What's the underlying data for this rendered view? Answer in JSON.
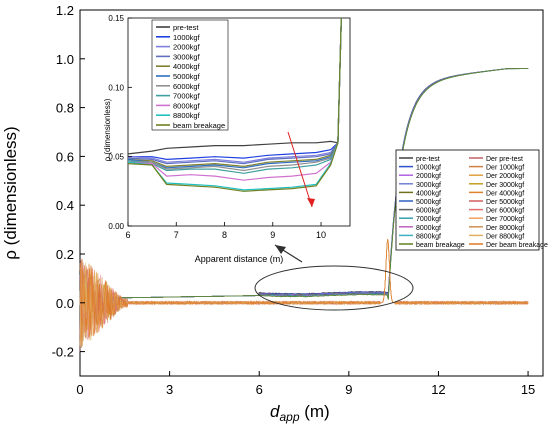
{
  "chart_data": [
    {
      "type": "line",
      "role": "main",
      "xlabel": "d",
      "xlabel_sub": "app",
      "xlabel_unit": " (m)",
      "ylabel": "ρ (dimensionless)",
      "xlim": [
        0,
        15.5
      ],
      "ylim": [
        -0.3,
        1.2
      ],
      "xticks": [
        "0",
        "3",
        "6",
        "9",
        "12",
        "15"
      ],
      "xtick_values": [
        0,
        3,
        6,
        9,
        12,
        15
      ],
      "yticks": [
        "-0.2",
        "0.0",
        "0.2",
        "0.4",
        "0.6",
        "0.8",
        "1.0",
        "1.2"
      ],
      "ytick_values": [
        -0.2,
        0.0,
        0.2,
        0.4,
        0.6,
        0.8,
        1.0,
        1.2
      ],
      "legend_position": "right-middle",
      "legend": [
        {
          "label": "pre-test",
          "color": "#404040"
        },
        {
          "label": "Der pre-test",
          "color": "#c06060"
        },
        {
          "label": "1000kgf",
          "color": "#3050d0"
        },
        {
          "label": "Der 1000kgf",
          "color": "#d08040"
        },
        {
          "label": "2000kgf",
          "color": "#b060e0"
        },
        {
          "label": "Der 2000kgf",
          "color": "#e0a040"
        },
        {
          "label": "3000kgf",
          "color": "#7080d0"
        },
        {
          "label": "Der 3000kgf",
          "color": "#c0a020"
        },
        {
          "label": "4000kgf",
          "color": "#707020"
        },
        {
          "label": "Der 4000kgf",
          "color": "#e08030"
        },
        {
          "label": "5000kgf",
          "color": "#3060c0"
        },
        {
          "label": "Der 5000kgf",
          "color": "#d06060"
        },
        {
          "label": "6000kgf",
          "color": "#606060"
        },
        {
          "label": "Der 6000kgf",
          "color": "#e07070"
        },
        {
          "label": "7000kgf",
          "color": "#30a0b0"
        },
        {
          "label": "Der 7000kgf",
          "color": "#f0a060"
        },
        {
          "label": "8000kgf",
          "color": "#c060c0"
        },
        {
          "label": "Der 8000kgf",
          "color": "#d09050"
        },
        {
          "label": "8800kgf",
          "color": "#40b0c0"
        },
        {
          "label": "Der 8800kgf",
          "color": "#e0b060"
        },
        {
          "label": "beam breakage",
          "color": "#608020"
        },
        {
          "label": "Der beam breakage",
          "color": "#e07820"
        }
      ],
      "series_summary": {
        "baseline_before_rise": 0.04,
        "rise_location_m": 10.3,
        "plateau_end_value": 0.96,
        "derivative_spike_peak": 0.26
      }
    },
    {
      "type": "line",
      "role": "inset",
      "xlabel": "Apparent distance (m)",
      "ylabel": "ρ (dimensionless)",
      "xlim": [
        6,
        10.6
      ],
      "ylim": [
        0,
        0.15
      ],
      "xticks": [
        "6",
        "7",
        "8",
        "9",
        "10"
      ],
      "xtick_values": [
        6,
        7,
        8,
        9,
        10
      ],
      "yticks": [
        "0.00",
        "0.05",
        "0.10",
        "0.15"
      ],
      "ytick_values": [
        0.0,
        0.05,
        0.1,
        0.15
      ],
      "legend_position": "top-left",
      "series": [
        {
          "name": "pre-test",
          "color": "#404040",
          "values": [
            0.052,
            0.054,
            0.056,
            0.057,
            0.058,
            0.058,
            0.059,
            0.06,
            0.06,
            0.061
          ]
        },
        {
          "name": "1000kgf",
          "color": "#2040e0",
          "values": [
            0.05,
            0.05,
            0.048,
            0.049,
            0.05,
            0.049,
            0.051,
            0.052,
            0.053,
            0.055
          ]
        },
        {
          "name": "2000kgf",
          "color": "#8080e0",
          "values": [
            0.05,
            0.049,
            0.046,
            0.047,
            0.048,
            0.046,
            0.049,
            0.05,
            0.051,
            0.053
          ]
        },
        {
          "name": "3000kgf",
          "color": "#6070c0",
          "values": [
            0.049,
            0.048,
            0.045,
            0.046,
            0.047,
            0.045,
            0.048,
            0.049,
            0.05,
            0.052
          ]
        },
        {
          "name": "4000kgf",
          "color": "#808030",
          "values": [
            0.048,
            0.047,
            0.043,
            0.044,
            0.045,
            0.043,
            0.046,
            0.047,
            0.048,
            0.051
          ]
        },
        {
          "name": "5000kgf",
          "color": "#3070c0",
          "values": [
            0.048,
            0.046,
            0.042,
            0.043,
            0.044,
            0.042,
            0.045,
            0.046,
            0.047,
            0.05
          ]
        },
        {
          "name": "6000kgf",
          "color": "#909090",
          "values": [
            0.047,
            0.046,
            0.041,
            0.042,
            0.043,
            0.04,
            0.043,
            0.044,
            0.046,
            0.049
          ]
        },
        {
          "name": "7000kgf",
          "color": "#40a0a0",
          "values": [
            0.047,
            0.045,
            0.04,
            0.041,
            0.041,
            0.038,
            0.041,
            0.042,
            0.044,
            0.048
          ]
        },
        {
          "name": "8000kgf",
          "color": "#d070d0",
          "values": [
            0.046,
            0.045,
            0.036,
            0.037,
            0.036,
            0.033,
            0.035,
            0.036,
            0.038,
            0.046
          ]
        },
        {
          "name": "8800kgf",
          "color": "#20c0c0",
          "values": [
            0.046,
            0.044,
            0.031,
            0.03,
            0.029,
            0.026,
            0.027,
            0.028,
            0.03,
            0.045
          ]
        },
        {
          "name": "beam breakage",
          "color": "#708020",
          "values": [
            0.045,
            0.044,
            0.03,
            0.029,
            0.028,
            0.025,
            0.026,
            0.027,
            0.029,
            0.044
          ]
        }
      ],
      "x": [
        6.0,
        6.5,
        6.8,
        7.3,
        7.8,
        8.4,
        8.9,
        9.4,
        9.9,
        10.2
      ]
    }
  ]
}
